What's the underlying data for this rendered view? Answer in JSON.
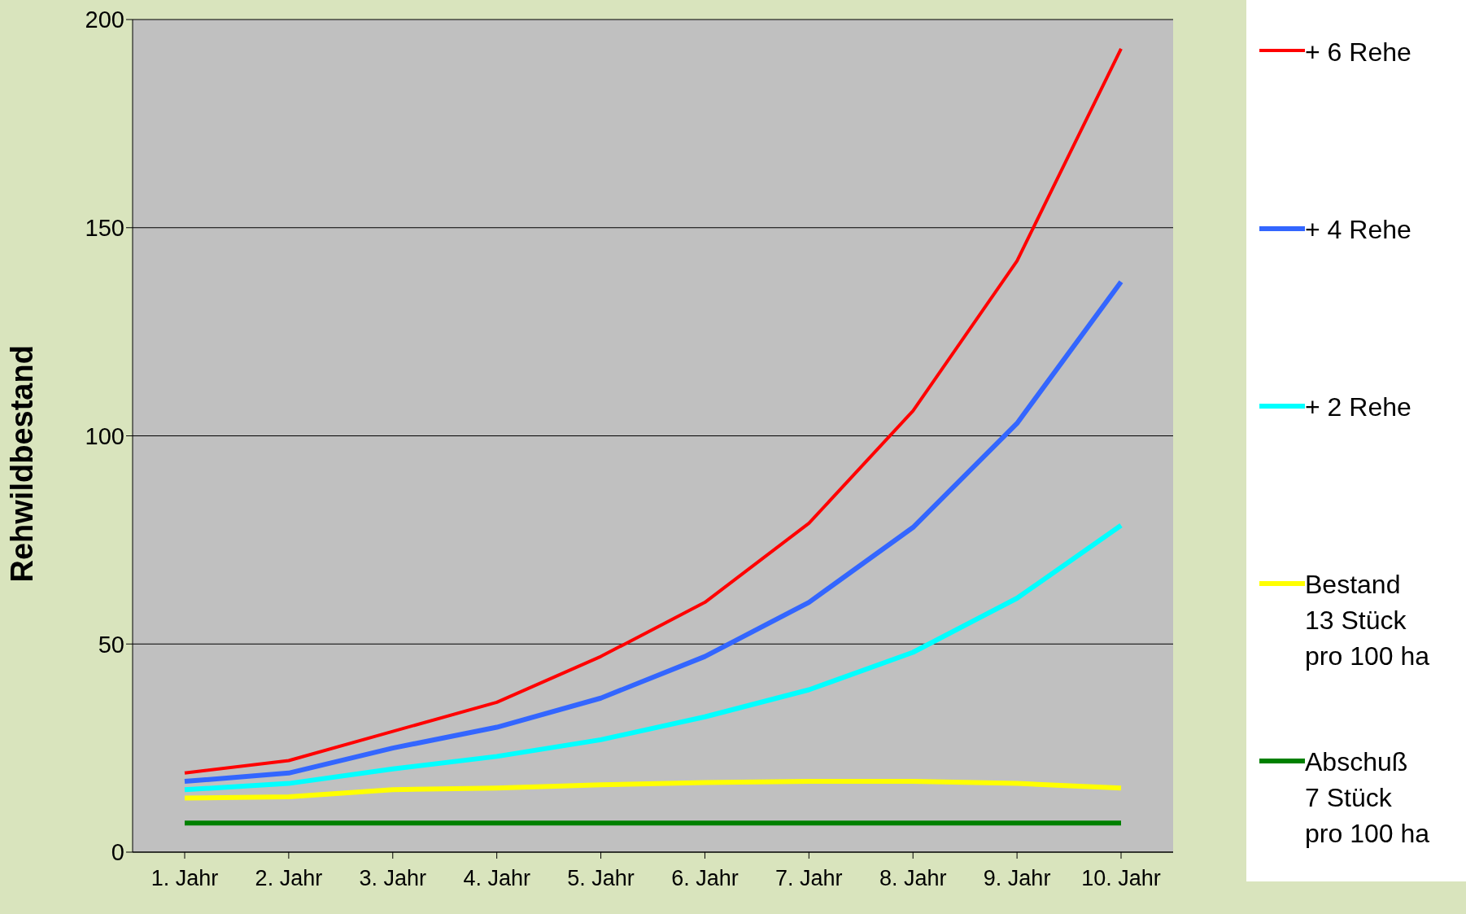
{
  "chart_data": {
    "type": "line",
    "ylabel": "Rehwildbestand",
    "categories": [
      "1. Jahr",
      "2. Jahr",
      "3. Jahr",
      "4. Jahr",
      "5. Jahr",
      "6. Jahr",
      "7. Jahr",
      "8. Jahr",
      "9. Jahr",
      "10. Jahr"
    ],
    "series": [
      {
        "name": "+ 6 Rehe",
        "color": "#ff0000",
        "values": [
          19,
          22,
          29,
          36,
          47,
          60,
          79,
          106,
          142,
          193
        ]
      },
      {
        "name": "+ 4 Rehe",
        "color": "#3366ff",
        "values": [
          17,
          19,
          25,
          30,
          37,
          47,
          60,
          78,
          103,
          137
        ]
      },
      {
        "name": "+ 2 Rehe",
        "color": "#00ffff",
        "values": [
          15,
          16.5,
          20,
          23,
          27,
          32.5,
          39,
          48,
          61,
          78.5
        ]
      },
      {
        "name": "Bestand\n13 Stück\npro 100 ha",
        "color": "#ffff00",
        "values": [
          13,
          13.3,
          15,
          15.4,
          16.2,
          16.7,
          17,
          17,
          16.5,
          15.4
        ]
      },
      {
        "name": "Abschuß\n7 Stück\npro 100 ha",
        "color": "#008000",
        "values": [
          7,
          7,
          7,
          7,
          7,
          7,
          7,
          7,
          7,
          7
        ]
      }
    ],
    "ylim": [
      0,
      200
    ],
    "yticks": [
      0,
      50,
      100,
      150,
      200
    ],
    "grid": "y",
    "legend": "right",
    "marker": "none",
    "line_style": "solid"
  }
}
